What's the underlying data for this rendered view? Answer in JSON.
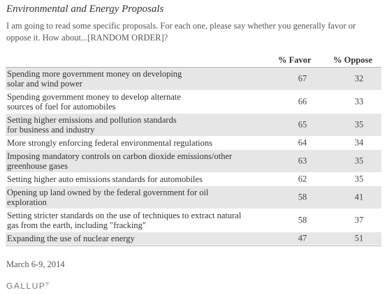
{
  "title": "Environmental and Energy Proposals",
  "subtitle": "I am going to read some specific proposals. For each one, please say whether you generally favor or oppose it. How about...[RANDOM ORDER]?",
  "date": "March 6-9, 2014",
  "logo": "GALLUP",
  "chart_data": {
    "type": "table",
    "columns": [
      "% Favor",
      "% Oppose"
    ],
    "rows": [
      {
        "label_lines": [
          "Spending more government money on developing",
          "solar and wind power"
        ],
        "favor": 67,
        "oppose": 32
      },
      {
        "label_lines": [
          "Spending government money to develop alternate",
          "sources of fuel for automobiles"
        ],
        "favor": 66,
        "oppose": 33
      },
      {
        "label_lines": [
          "Setting higher emissions and pollution standards",
          "for business and industry"
        ],
        "favor": 65,
        "oppose": 35
      },
      {
        "label_lines": [
          "More strongly enforcing federal environmental regulations"
        ],
        "favor": 64,
        "oppose": 34
      },
      {
        "label_lines": [
          "Imposing mandatory controls on carbon dioxide emissions/other",
          "greenhouse gases"
        ],
        "favor": 63,
        "oppose": 35
      },
      {
        "label_lines": [
          "Setting higher auto emissions standards for automobiles"
        ],
        "favor": 62,
        "oppose": 35
      },
      {
        "label_lines": [
          "Opening up land owned by the federal government for oil",
          "exploration"
        ],
        "favor": 58,
        "oppose": 41
      },
      {
        "label_lines": [
          "Setting stricter standards on the use of techniques to extract natural",
          "gas from the earth, including \"fracking\""
        ],
        "favor": 58,
        "oppose": 37
      },
      {
        "label_lines": [
          "Expanding the use of nuclear energy"
        ],
        "favor": 47,
        "oppose": 51
      }
    ]
  }
}
